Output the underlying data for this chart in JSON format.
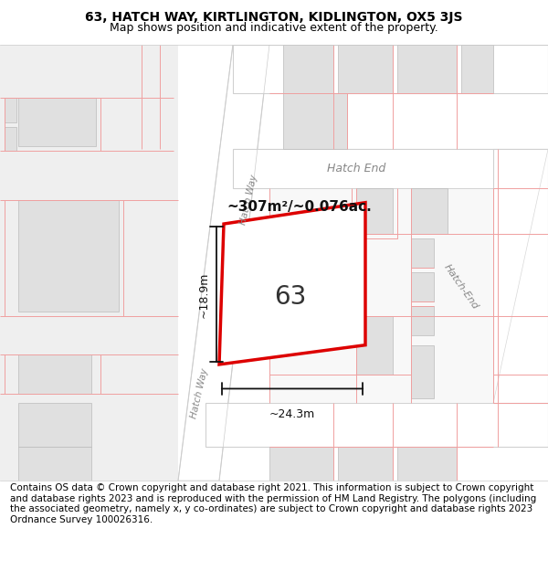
{
  "title_line1": "63, HATCH WAY, KIRTLINGTON, KIDLINGTON, OX5 3JS",
  "title_line2": "Map shows position and indicative extent of the property.",
  "footer_text": "Contains OS data © Crown copyright and database right 2021. This information is subject to Crown copyright and database rights 2023 and is reproduced with the permission of HM Land Registry. The polygons (including the associated geometry, namely x, y co-ordinates) are subject to Crown copyright and database rights 2023 Ordnance Survey 100026316.",
  "title_fontsize": 10,
  "subtitle_fontsize": 9,
  "footer_fontsize": 7.5,
  "map_bg": "#efefef",
  "road_fill": "#ffffff",
  "road_edge": "#d0d0d0",
  "bldg_fill": "#e0e0e0",
  "bldg_edge": "#bbbbbb",
  "plot_fill": "#f5f5f5",
  "pink": "#f0a0a0",
  "red": "#dd0000",
  "label_color": "#888888",
  "dim_color": "#111111",
  "area_text": "~307m²/~0.076ac.",
  "label_63": "63",
  "dim_width": "~24.3m",
  "dim_height": "~18.9m",
  "street_hatch_end_top": "Hatch End",
  "street_hatch_end_right": "Hatch-End",
  "street_hatch_way_upper": "Hatch Way",
  "street_hatch_way_lower": "Hatch Way"
}
